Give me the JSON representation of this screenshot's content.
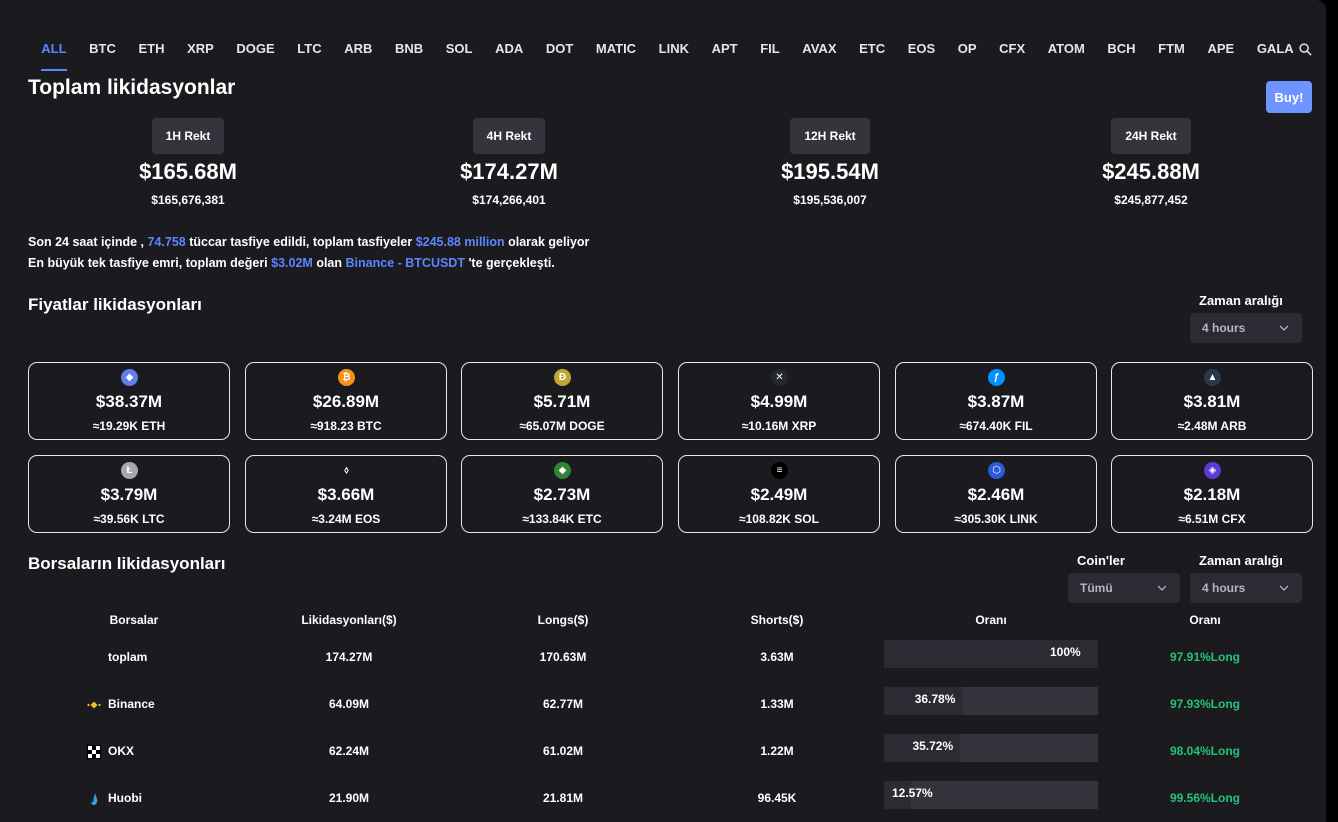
{
  "tabs": [
    "ALL",
    "BTC",
    "ETH",
    "XRP",
    "DOGE",
    "LTC",
    "ARB",
    "BNB",
    "SOL",
    "ADA",
    "DOT",
    "MATIC",
    "LINK",
    "APT",
    "FIL",
    "AVAX",
    "ETC",
    "EOS",
    "OP",
    "CFX",
    "ATOM",
    "BCH",
    "FTM",
    "APE",
    "GALA"
  ],
  "header": {
    "title": "Toplam likidasyonlar",
    "buy_label": "Buy!"
  },
  "rekt": [
    {
      "label": "1H Rekt",
      "value": "$165.68M",
      "exact": "$165,676,381"
    },
    {
      "label": "4H Rekt",
      "value": "$174.27M",
      "exact": "$174,266,401"
    },
    {
      "label": "12H Rekt",
      "value": "$195.54M",
      "exact": "$195,536,007"
    },
    {
      "label": "24H Rekt",
      "value": "$245.88M",
      "exact": "$245,877,452"
    }
  ],
  "summary": {
    "l1_a": "Son 24 saat içinde ,",
    "l1_traders": "74.758",
    "l1_b": "tüccar tasfiye edildi, toplam tasfiyeler",
    "l1_total": "$245.88 million",
    "l1_c": "olarak geliyor",
    "l2_a": "En büyük tek tasfiye emri, toplam değeri",
    "l2_value": "$3.02M",
    "l2_b": "olan",
    "l2_market": "Binance - BTCUSDT",
    "l2_c": "'te gerçekleşti."
  },
  "price_section": {
    "title": "Fiyatlar likidasyonları",
    "range_label": "Zaman aralığı",
    "range_value": "4 hours"
  },
  "coins": [
    {
      "icon": "eth-icon",
      "color": "#627eea",
      "glyph": "◆",
      "value": "$38.37M",
      "sub": "≈19.29K ETH"
    },
    {
      "icon": "btc-icon",
      "color": "#f7931a",
      "glyph": "₿",
      "value": "$26.89M",
      "sub": "≈918.23 BTC"
    },
    {
      "icon": "doge-icon",
      "color": "#c2a633",
      "glyph": "Ð",
      "value": "$5.71M",
      "sub": "≈65.07M DOGE"
    },
    {
      "icon": "xrp-icon",
      "color": "#23292f",
      "glyph": "✕",
      "value": "$4.99M",
      "sub": "≈10.16M XRP"
    },
    {
      "icon": "fil-icon",
      "color": "#0090ff",
      "glyph": "ƒ",
      "value": "$3.87M",
      "sub": "≈674.40K FIL"
    },
    {
      "icon": "arb-icon",
      "color": "#2d374b",
      "glyph": "▲",
      "value": "$3.81M",
      "sub": "≈2.48M ARB"
    },
    {
      "icon": "ltc-icon",
      "color": "#a6a9aa",
      "glyph": "Ł",
      "value": "$3.79M",
      "sub": "≈39.56K LTC"
    },
    {
      "icon": "eos-icon",
      "color": "#1b1a1e",
      "glyph": "⬨",
      "value": "$3.66M",
      "sub": "≈3.24M EOS"
    },
    {
      "icon": "etc-icon",
      "color": "#328332",
      "glyph": "◆",
      "value": "$2.73M",
      "sub": "≈133.84K ETC"
    },
    {
      "icon": "sol-icon",
      "color": "#000000",
      "glyph": "≡",
      "value": "$2.49M",
      "sub": "≈108.82K SOL"
    },
    {
      "icon": "link-icon",
      "color": "#2a5ada",
      "glyph": "⬡",
      "value": "$2.46M",
      "sub": "≈305.30K LINK"
    },
    {
      "icon": "cfx-icon",
      "color": "#5a3bd6",
      "glyph": "◈",
      "value": "$2.18M",
      "sub": "≈6.51M CFX"
    }
  ],
  "exchange_section": {
    "title": "Borsaların likidasyonları",
    "coin_label": "Coin'ler",
    "coin_value": "Tümü",
    "range_label": "Zaman aralığı",
    "range_value": "4 hours",
    "columns": [
      "Borsalar",
      "Likidasyonları($)",
      "Longs($)",
      "Shorts($)",
      "Oranı",
      "Oranı"
    ],
    "rows": [
      {
        "name": "toplam",
        "icon": "",
        "liq": "174.27M",
        "longs": "170.63M",
        "shorts": "3.63M",
        "share": "100%",
        "share_frac": 1.0,
        "ratio": "97.91%Long"
      },
      {
        "name": "Binance",
        "icon": "binance-icon",
        "liq": "64.09M",
        "longs": "62.77M",
        "shorts": "1.33M",
        "share": "36.78%",
        "share_frac": 0.3678,
        "ratio": "97.93%Long"
      },
      {
        "name": "OKX",
        "icon": "okx-icon",
        "liq": "62.24M",
        "longs": "61.02M",
        "shorts": "1.22M",
        "share": "35.72%",
        "share_frac": 0.3572,
        "ratio": "98.04%Long"
      },
      {
        "name": "Huobi",
        "icon": "huobi-icon",
        "liq": "21.90M",
        "longs": "21.81M",
        "shorts": "96.45K",
        "share": "12.57%",
        "share_frac": 0.1257,
        "ratio": "99.56%Long"
      }
    ]
  }
}
